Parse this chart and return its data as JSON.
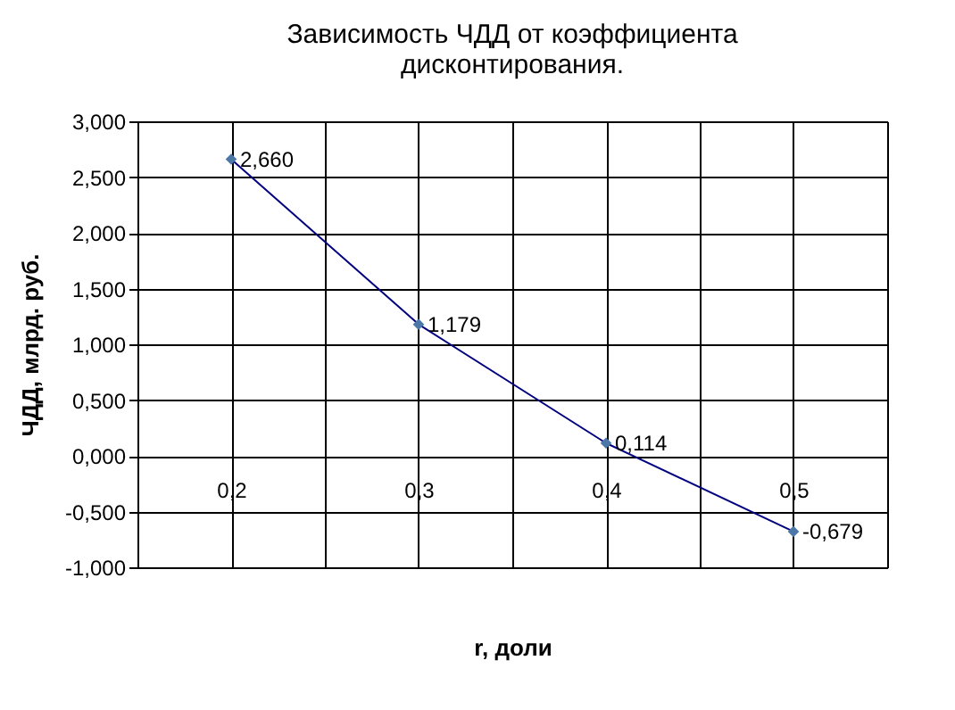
{
  "chart_data": {
    "type": "line",
    "title": [
      "Зависимость ЧДД от коэффициента",
      "дисконтирования."
    ],
    "xlabel": "r, доли",
    "ylabel": "ЧДД, млрд. руб.",
    "x": [
      0.2,
      0.3,
      0.4,
      0.5
    ],
    "series": [
      {
        "color": "#000080",
        "values": [
          2.66,
          1.179,
          0.114,
          -0.679
        ],
        "value_labels": [
          "2,660",
          "1,179",
          "0,114",
          "-0,679"
        ]
      }
    ],
    "xlim": [
      0.15,
      0.55
    ],
    "xticks": [
      {
        "value": 0.15,
        "label": null
      },
      {
        "value": 0.2,
        "label": "0,2"
      },
      {
        "value": 0.25,
        "label": null
      },
      {
        "value": 0.3,
        "label": "0,3"
      },
      {
        "value": 0.35,
        "label": null
      },
      {
        "value": 0.4,
        "label": "0,4"
      },
      {
        "value": 0.45,
        "label": null
      },
      {
        "value": 0.5,
        "label": "0,5"
      },
      {
        "value": 0.55,
        "label": null
      }
    ],
    "ylim": [
      -1,
      3
    ],
    "yticks": [
      {
        "value": -1,
        "label": "-1,000"
      },
      {
        "value": -0.5,
        "label": "-0,500"
      },
      {
        "value": 0,
        "label": "0,000"
      },
      {
        "value": 0.5,
        "label": "0,500"
      },
      {
        "value": 1,
        "label": "1,000"
      },
      {
        "value": 1.5,
        "label": "1,500"
      },
      {
        "value": 2,
        "label": "2,000"
      },
      {
        "value": 2.5,
        "label": "2,500"
      },
      {
        "value": 3,
        "label": "3,000"
      }
    ],
    "grid": true,
    "marker": "diamond",
    "line_style": "solid"
  }
}
